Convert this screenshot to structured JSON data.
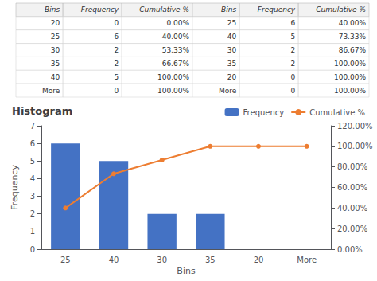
{
  "chart_data": [
    {
      "type": "table",
      "header": [
        "Bins",
        "Frequency",
        "Cumulative %",
        "Bins",
        "Frequency",
        "Cumulative %"
      ],
      "rows": [
        [
          "20",
          "0",
          "0.00%",
          "25",
          "6",
          "40.00%"
        ],
        [
          "25",
          "6",
          "40.00%",
          "40",
          "5",
          "73.33%"
        ],
        [
          "30",
          "2",
          "53.33%",
          "30",
          "2",
          "86.67%"
        ],
        [
          "35",
          "2",
          "66.67%",
          "35",
          "2",
          "100.00%"
        ],
        [
          "40",
          "5",
          "100.00%",
          "20",
          "0",
          "100.00%"
        ],
        [
          "More",
          "0",
          "100.00%",
          "More",
          "0",
          "100.00%"
        ]
      ]
    },
    {
      "type": "bar",
      "title": "Histogram",
      "categories": [
        "25",
        "40",
        "30",
        "35",
        "20",
        "More"
      ],
      "series": [
        {
          "name": "Frequency",
          "type": "bar",
          "color": "#4472C4",
          "values": [
            6,
            5,
            2,
            2,
            0,
            0
          ]
        },
        {
          "name": "Cumulative %",
          "type": "line",
          "axis": "y2",
          "color": "#ED7D31",
          "marker": "circle",
          "values": [
            0.4,
            0.7333,
            0.8667,
            1.0,
            1.0,
            1.0
          ]
        }
      ],
      "xlabel": "Bins",
      "ylabel": "Frequency",
      "ylim": [
        0,
        7
      ],
      "yticks": [
        0,
        1,
        2,
        3,
        4,
        5,
        6,
        7
      ],
      "y2lim": [
        0,
        1.2
      ],
      "y2ticks": [
        {
          "value": 0,
          "label": "0.00%"
        },
        {
          "value": 0.2,
          "label": "20.00%"
        },
        {
          "value": 0.4,
          "label": "40.00%"
        },
        {
          "value": 0.6,
          "label": "60.00%"
        },
        {
          "value": 0.8,
          "label": "80.00%"
        },
        {
          "value": 1,
          "label": "100.00%"
        },
        {
          "value": 1.2,
          "label": "120.00%"
        }
      ],
      "grid": false,
      "legend": "upper right"
    }
  ]
}
